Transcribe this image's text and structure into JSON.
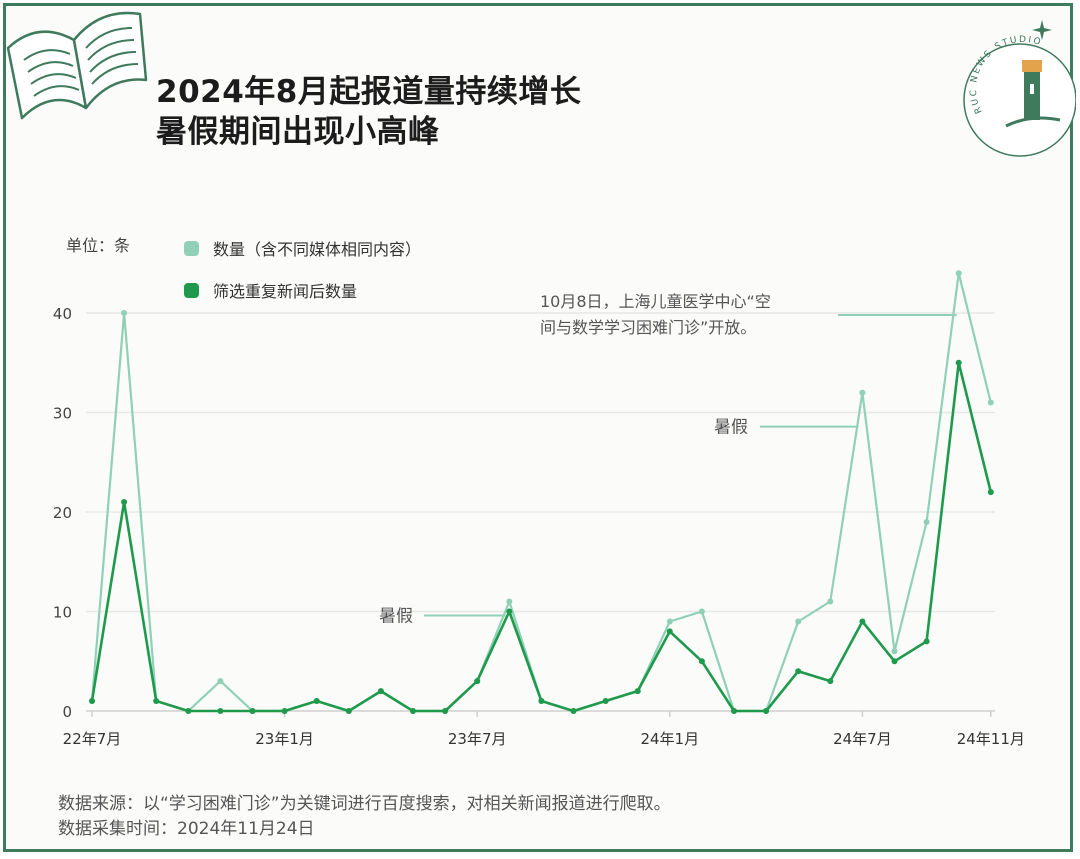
{
  "title_line1": "2024年8月起报道量持续增长",
  "title_line2": "暑假期间出现小高峰",
  "unit_label": "单位：条",
  "logo_text": "RUC NEWS STUDIO",
  "colors": {
    "frame": "#3f7a5c",
    "series_total": "#8fd0b6",
    "series_dedup": "#1f9a4c",
    "grid": "#e7e7e7"
  },
  "footer": {
    "source": "数据来源：以“学习困难门诊”为关键词进行百度搜索，对相关新闻报道进行爬取。",
    "time": "数据采集时间：2024年11月24日"
  },
  "chart_data": {
    "type": "line",
    "x": [
      "2022-07",
      "2022-08",
      "2022-09",
      "2022-10",
      "2022-11",
      "2022-12",
      "2023-01",
      "2023-02",
      "2023-03",
      "2023-04",
      "2023-05",
      "2023-06",
      "2023-07",
      "2023-08",
      "2023-09",
      "2023-10",
      "2023-11",
      "2023-12",
      "2024-01",
      "2024-02",
      "2024-03",
      "2024-04",
      "2024-05",
      "2024-06",
      "2024-07",
      "2024-08",
      "2024-09",
      "2024-10",
      "2024-11"
    ],
    "x_tick_labels": [
      {
        "x": "2022-07",
        "label": "22年7月"
      },
      {
        "x": "2023-01",
        "label": "23年1月"
      },
      {
        "x": "2023-07",
        "label": "23年7月"
      },
      {
        "x": "2024-01",
        "label": "24年1月"
      },
      {
        "x": "2024-07",
        "label": "24年7月"
      },
      {
        "x": "2024-11",
        "label": "24年11月"
      }
    ],
    "ylim": [
      0,
      45
    ],
    "yticks": [
      0,
      10,
      20,
      30,
      40
    ],
    "grid": true,
    "legend_position": "top-left",
    "series": [
      {
        "name": "数量（含不同媒体相同内容）",
        "color": "#8fd0b6",
        "values": [
          1,
          40,
          1,
          0,
          3,
          0,
          0,
          1,
          0,
          2,
          0,
          0,
          3,
          11,
          1,
          0,
          1,
          2,
          9,
          10,
          0,
          0,
          9,
          11,
          32,
          6,
          19,
          44,
          31
        ]
      },
      {
        "name": "筛选重复新闻后数量",
        "color": "#1f9a4c",
        "values": [
          1,
          21,
          1,
          0,
          0,
          0,
          0,
          1,
          0,
          2,
          0,
          0,
          3,
          10,
          1,
          0,
          1,
          2,
          8,
          5,
          0,
          0,
          4,
          3,
          9,
          5,
          7,
          35,
          22
        ]
      }
    ],
    "annotations": [
      {
        "text": "暑假",
        "x": "2023-08"
      },
      {
        "text": "暑假",
        "x": "2024-07"
      },
      {
        "text_line1": "10月8日，上海儿童医学中心“空",
        "text_line2": "间与数学学习困难门诊”开放。",
        "x": "2024-10"
      }
    ]
  }
}
